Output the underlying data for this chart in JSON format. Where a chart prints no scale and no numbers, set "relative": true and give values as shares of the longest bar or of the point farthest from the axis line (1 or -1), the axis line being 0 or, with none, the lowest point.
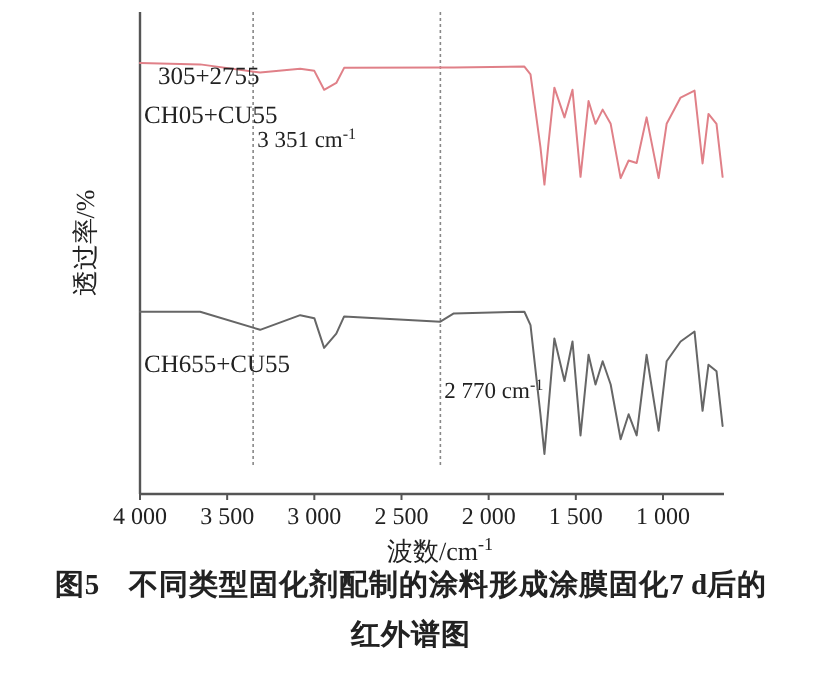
{
  "chart_data": {
    "type": "line",
    "relative": true,
    "title": "**图5　不同类型固化剂配制的涂料形成涂膜固化7 d后的红外谱图**",
    "xlabel": "波数/cm$^{-1}$",
    "ylabel": "透过率/%",
    "xlim": [
      4000,
      650
    ],
    "xticks": [
      {
        "value": 4000,
        "label": "4 000"
      },
      {
        "value": 3500,
        "label": "3 500"
      },
      {
        "value": 3000,
        "label": "3 000"
      },
      {
        "value": 2500,
        "label": "2 500"
      },
      {
        "value": 2000,
        "label": "2 000"
      },
      {
        "value": 1500,
        "label": "1 500"
      },
      {
        "value": 1000,
        "label": "1 000"
      }
    ],
    "x": [
      4000,
      3655,
      3311,
      3081,
      3000,
      2944,
      2874,
      2829,
      2277,
      2200,
      1795,
      1760,
      1703,
      1680,
      1657,
      1623,
      1565,
      1519,
      1473,
      1427,
      1387,
      1346,
      1300,
      1243,
      1197,
      1151,
      1094,
      1025,
      979,
      899,
      819,
      773,
      739,
      693,
      658
    ],
    "series": [
      {
        "name": "CH05+CU55",
        "color": "#e08088",
        "values": [
          1.0,
          0.997,
          0.978,
          0.987,
          0.982,
          0.938,
          0.954,
          0.989,
          0.99,
          0.99,
          0.992,
          0.974,
          0.805,
          0.718,
          0.813,
          0.943,
          0.874,
          0.938,
          0.736,
          0.912,
          0.859,
          0.892,
          0.859,
          0.733,
          0.774,
          0.768,
          0.874,
          0.733,
          0.859,
          0.92,
          0.936,
          0.767,
          0.882,
          0.859,
          0.736
        ]
      },
      {
        "name": "CH655+CU55",
        "color": "#666666",
        "values": [
          0.423,
          0.423,
          0.381,
          0.415,
          0.408,
          0.339,
          0.372,
          0.412,
          0.4,
          0.419,
          0.423,
          0.392,
          0.185,
          0.093,
          0.201,
          0.361,
          0.262,
          0.354,
          0.136,
          0.323,
          0.254,
          0.308,
          0.254,
          0.127,
          0.185,
          0.136,
          0.323,
          0.147,
          0.308,
          0.354,
          0.377,
          0.193,
          0.3,
          0.285,
          0.158
        ]
      }
    ],
    "ref_lines": [
      {
        "axis": "x",
        "value": 3351,
        "label": "3 351 cm$^{-1}$",
        "color": "#888888",
        "line_style": "dotted"
      },
      {
        "axis": "x",
        "value": 2277,
        "label": "2 770 cm$^{-1}$",
        "color": "#888888",
        "line_style": "dotted"
      }
    ],
    "annotations": [
      "305+2755"
    ]
  }
}
